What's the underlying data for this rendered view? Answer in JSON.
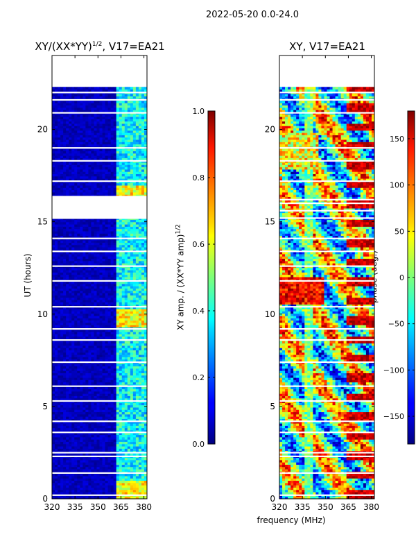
{
  "suptitle": "2022-05-20 0.0-24.0",
  "shared_xlabel": "frequency (MHz)",
  "colors": {
    "white": "#ffffff",
    "text": "#000000"
  },
  "chart_data": [
    {
      "type": "heatmap",
      "title": "XY/(XX*YY)",
      "title_superscript": "1/2",
      "title_suffix": ", V17=EA21",
      "xlabel": "frequency (MHz)",
      "ylabel": "UT (hours)",
      "xlim": [
        320,
        382
      ],
      "ylim": [
        0,
        24
      ],
      "xticks": [
        320,
        335,
        350,
        365,
        380
      ],
      "yticks": [
        0,
        5,
        10,
        15,
        20
      ],
      "colorbar": {
        "label": "XY amp. / (XX*YY amp)",
        "label_superscript": "1/2",
        "range": [
          0.0,
          1.0
        ],
        "ticks": [
          "0.0",
          "0.2",
          "0.4",
          "0.6",
          "0.8",
          "1.0"
        ],
        "colormap": "jet"
      },
      "data_top_hour": 22.3,
      "high_amplitude_band_mhz": [
        362,
        382
      ],
      "high_amplitude_hours": [
        0.5,
        9.8,
        16.5
      ],
      "blank_rows_hours": [
        0.2,
        1.4,
        2.3,
        2.5,
        3.6,
        4.2,
        5.3,
        6.1,
        7.4,
        8.6,
        9.2,
        10.4,
        11.8,
        12.6,
        13.4,
        14.1,
        15.2,
        15.6,
        16.0,
        16.2,
        17.2,
        18.3,
        19.0,
        20.9,
        21.6,
        22.0
      ]
    },
    {
      "type": "heatmap",
      "title": "XY, V17=EA21",
      "xlabel": "frequency (MHz)",
      "ylabel": "",
      "xlim": [
        320,
        382
      ],
      "ylim": [
        0,
        24
      ],
      "xticks": [
        320,
        335,
        350,
        365,
        380
      ],
      "yticks": [
        0,
        5,
        10,
        15,
        20
      ],
      "colorbar": {
        "label": "phase (deg.)",
        "range": [
          -180,
          180
        ],
        "ticks": [
          "−150",
          "−100",
          "−50",
          "0",
          "50",
          "100",
          "150"
        ],
        "colormap": "jet"
      },
      "data_top_hour": 22.3,
      "blank_rows_hours": [
        0.2,
        1.4,
        2.3,
        2.5,
        3.6,
        4.2,
        5.3,
        6.1,
        7.4,
        8.6,
        9.2,
        10.4,
        11.8,
        12.6,
        13.4,
        14.1,
        15.2,
        15.6,
        16.0,
        16.2,
        17.2,
        18.3,
        19.0,
        20.9,
        21.6,
        22.0
      ]
    }
  ]
}
